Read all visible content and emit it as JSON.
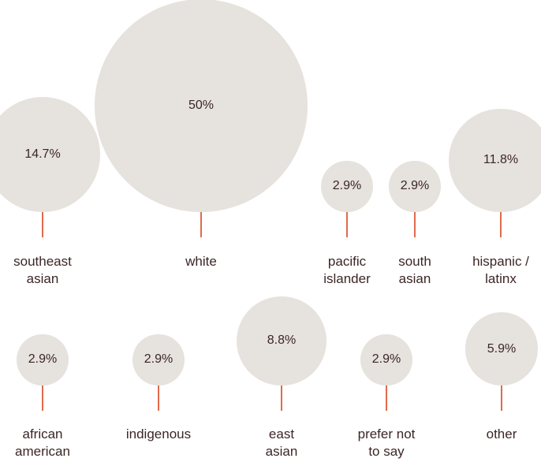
{
  "chart_data": {
    "type": "bubble",
    "title": "",
    "colors": {
      "bubble": "#e6e2dd",
      "stem": "#e06a4a",
      "text": "#3b2626"
    },
    "rows": [
      [
        {
          "category": "southeast\nasian",
          "value": 14.7,
          "label": "14.7%"
        },
        {
          "category": "white",
          "value": 50,
          "label": "50%"
        },
        {
          "category": "pacific\nislander",
          "value": 2.9,
          "label": "2.9%"
        },
        {
          "category": "south\nasian",
          "value": 2.9,
          "label": "2.9%"
        },
        {
          "category": "hispanic /\nlatinx",
          "value": 11.8,
          "label": "11.8%"
        }
      ],
      [
        {
          "category": "african\namerican",
          "value": 2.9,
          "label": "2.9%"
        },
        {
          "category": "indigenous",
          "value": 2.9,
          "label": "2.9%"
        },
        {
          "category": "east\nasian",
          "value": 8.8,
          "label": "8.8%"
        },
        {
          "category": "prefer not\nto say",
          "value": 2.9,
          "label": "2.9%"
        },
        {
          "category": "other",
          "value": 5.9,
          "label": "5.9%"
        }
      ]
    ]
  }
}
